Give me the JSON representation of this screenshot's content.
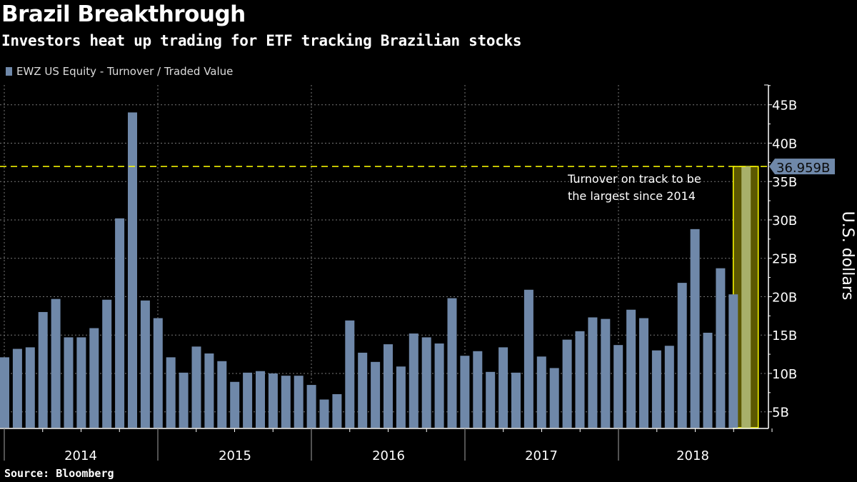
{
  "header": {
    "title": "Brazil Breakthrough",
    "subtitle": "Investors heat up trading for ETF tracking Brazilian stocks"
  },
  "footer": {
    "source": "Source: Bloomberg"
  },
  "colors": {
    "bar": "#6f88a9",
    "highlight_fill": "#5c5800",
    "highlight_bar": "#a8b06a",
    "highlight_line": "#ffff00",
    "label_box": "#6f88a9"
  },
  "chart_data": {
    "type": "bar",
    "title": "Brazil Breakthrough",
    "subtitle": "Investors heat up trading for ETF tracking Brazilian stocks",
    "legend": [
      {
        "name": "EWZ US Equity - Turnover / Traded Value",
        "placement": "top-left"
      }
    ],
    "ylabel": "U.S. dollars",
    "xlabel": "",
    "ylim": [
      2.86,
      47.5
    ],
    "yticks": [
      5,
      10,
      15,
      20,
      25,
      30,
      35,
      40,
      45
    ],
    "ytick_labels": [
      "5B",
      "10B",
      "15B",
      "20B",
      "25B",
      "30B",
      "35B",
      "40B",
      "45B"
    ],
    "year_labels": [
      "2014",
      "2015",
      "2016",
      "2017",
      "2018"
    ],
    "grid": true,
    "series": [
      {
        "name": "EWZ US Equity - Turnover / Traded Value",
        "unit": "B USD",
        "values": [
          12.1,
          13.2,
          13.4,
          18.0,
          19.7,
          14.7,
          14.7,
          15.9,
          19.6,
          30.2,
          44.0,
          19.5,
          17.2,
          12.1,
          10.1,
          13.5,
          12.6,
          11.6,
          8.9,
          10.1,
          10.3,
          10.0,
          9.7,
          9.7,
          8.5,
          6.6,
          7.3,
          16.9,
          12.7,
          11.5,
          13.8,
          10.9,
          15.2,
          14.7,
          13.9,
          19.8,
          12.3,
          12.9,
          10.2,
          13.4,
          10.1,
          20.9,
          12.2,
          10.7,
          14.4,
          15.5,
          17.3,
          17.1,
          13.7,
          18.3,
          17.2,
          13.0,
          13.6,
          21.8,
          28.8,
          15.3,
          23.7,
          20.3,
          36.959
        ]
      }
    ],
    "highlight": {
      "index": 58,
      "value": 36.959,
      "label": "36.959B"
    },
    "reference_line": {
      "value": 36.959,
      "style": "dashed",
      "color": "#ffff00"
    },
    "annotation": [
      "Turnover on track to be",
      "the largest since 2014"
    ]
  }
}
